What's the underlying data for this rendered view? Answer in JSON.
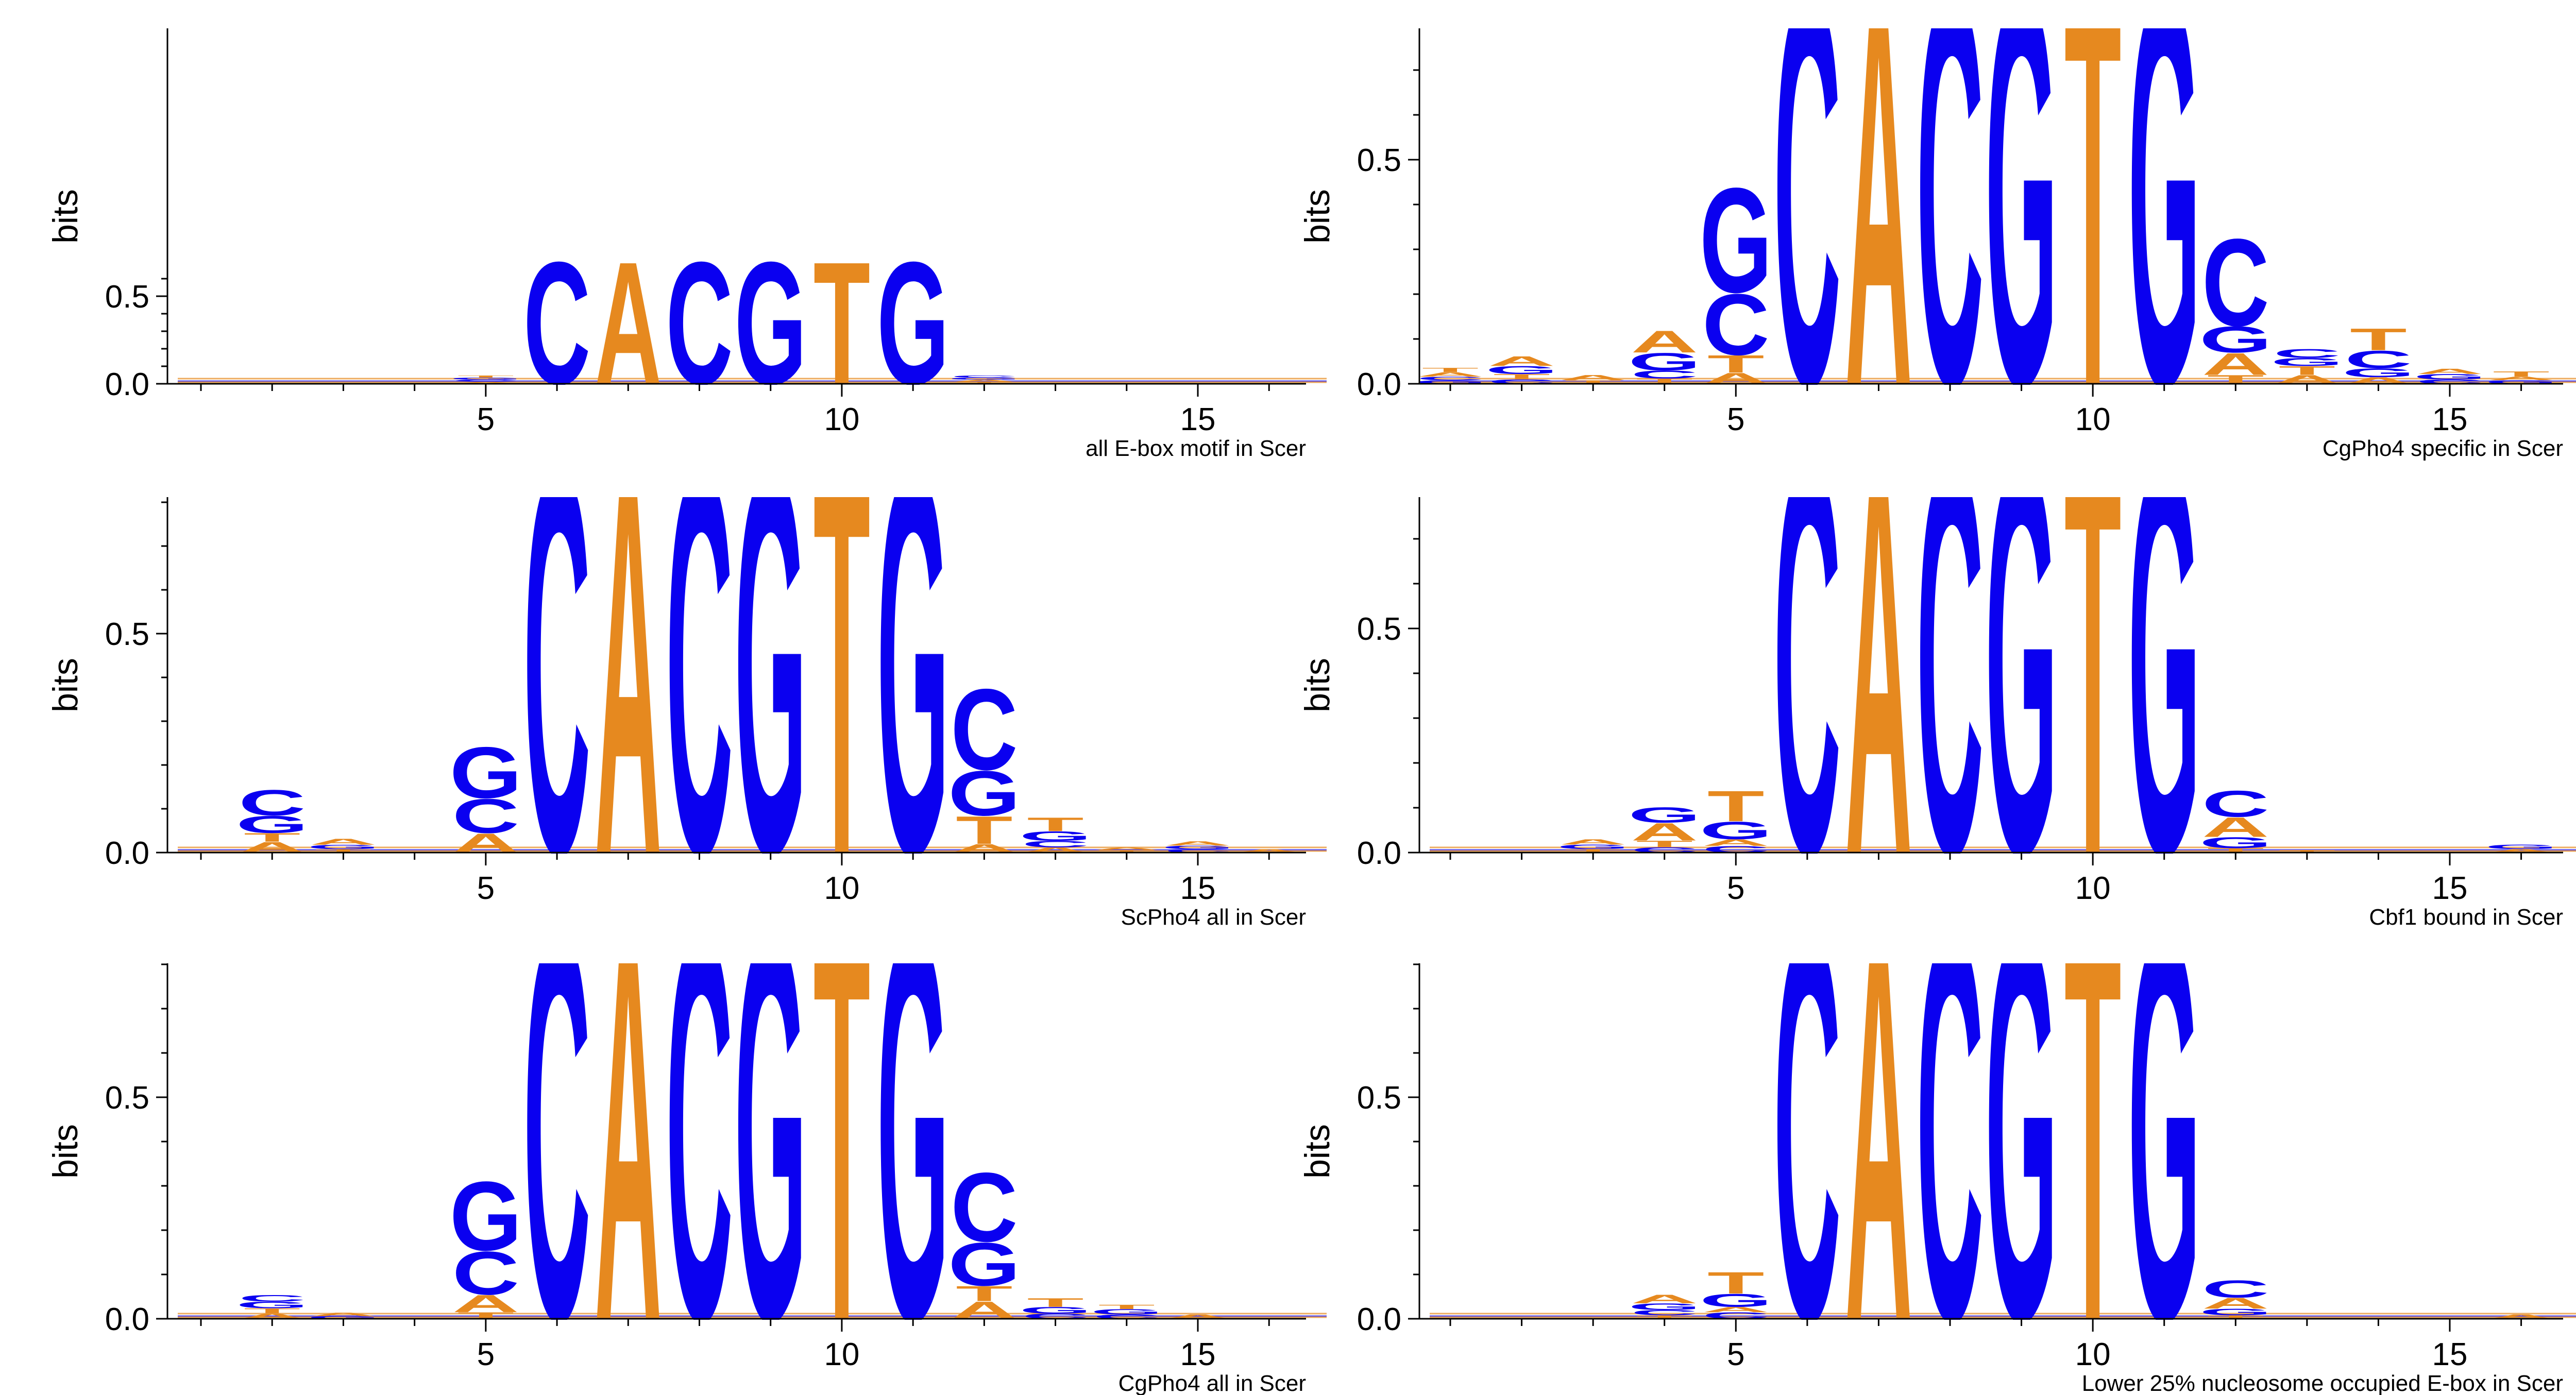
{
  "colors": {
    "blue": "#0a00f0",
    "orange": "#e6891f",
    "axis": "#000000"
  },
  "chart_data": [
    {
      "type": "sequence-logo",
      "caption": "all E-box motif in Scer",
      "ylabel": "bits",
      "ylim": [
        0,
        0.6
      ],
      "yticks": [
        "0.0",
        "0.5"
      ],
      "xticks": [
        "5",
        "10",
        "15"
      ],
      "xlim": [
        0.5,
        17
      ],
      "columns": [
        {
          "pos": 5,
          "letters": [
            {
              "c": "A",
              "h": 0.01
            },
            {
              "c": "C",
              "h": 0.012
            },
            {
              "c": "G",
              "h": 0.012
            },
            {
              "c": "T",
              "h": 0.012
            }
          ]
        },
        {
          "pos": 6,
          "letters": [
            {
              "c": "C",
              "h": 0.72
            }
          ]
        },
        {
          "pos": 7,
          "letters": [
            {
              "c": "A",
              "h": 0.72
            }
          ]
        },
        {
          "pos": 8,
          "letters": [
            {
              "c": "C",
              "h": 0.72
            }
          ]
        },
        {
          "pos": 9,
          "letters": [
            {
              "c": "G",
              "h": 0.72
            }
          ]
        },
        {
          "pos": 10,
          "letters": [
            {
              "c": "T",
              "h": 0.72
            }
          ]
        },
        {
          "pos": 11,
          "letters": [
            {
              "c": "G",
              "h": 0.72
            }
          ]
        },
        {
          "pos": 12,
          "letters": [
            {
              "c": "T",
              "h": 0.008
            },
            {
              "c": "A",
              "h": 0.01
            },
            {
              "c": "G",
              "h": 0.01
            },
            {
              "c": "C",
              "h": 0.012
            }
          ]
        }
      ]
    },
    {
      "type": "sequence-logo",
      "caption": "CgPho4 specific in Scer",
      "ylabel": "bits",
      "ylim": [
        0,
        0.8
      ],
      "yticks": [
        "0.0",
        "0.5"
      ],
      "xticks": [
        "5",
        "10",
        "15"
      ],
      "xlim": [
        0.5,
        17
      ],
      "columns": [
        {
          "pos": 1,
          "letters": [
            {
              "c": "G",
              "h": 0.008
            },
            {
              "c": "C",
              "h": 0.008
            },
            {
              "c": "A",
              "h": 0.01
            },
            {
              "c": "T",
              "h": 0.01
            }
          ]
        },
        {
          "pos": 2,
          "letters": [
            {
              "c": "C",
              "h": 0.01
            },
            {
              "c": "T",
              "h": 0.012
            },
            {
              "c": "G",
              "h": 0.018
            },
            {
              "c": "A",
              "h": 0.022
            }
          ]
        },
        {
          "pos": 3,
          "letters": [
            {
              "c": "T",
              "h": 0.008
            },
            {
              "c": "A",
              "h": 0.012
            }
          ]
        },
        {
          "pos": 4,
          "letters": [
            {
              "c": "T",
              "h": 0.012
            },
            {
              "c": "C",
              "h": 0.018
            },
            {
              "c": "G",
              "h": 0.04
            },
            {
              "c": "A",
              "h": 0.05
            }
          ]
        },
        {
          "pos": 5,
          "letters": [
            {
              "c": "A",
              "h": 0.025
            },
            {
              "c": "T",
              "h": 0.04
            },
            {
              "c": "C",
              "h": 0.14
            },
            {
              "c": "G",
              "h": 0.24
            }
          ]
        },
        {
          "pos": 6,
          "letters": [
            {
              "c": "C",
              "h": 0.9
            }
          ]
        },
        {
          "pos": 7,
          "letters": [
            {
              "c": "A",
              "h": 0.9
            }
          ]
        },
        {
          "pos": 8,
          "letters": [
            {
              "c": "C",
              "h": 0.9
            }
          ]
        },
        {
          "pos": 9,
          "letters": [
            {
              "c": "G",
              "h": 0.9
            }
          ]
        },
        {
          "pos": 10,
          "letters": [
            {
              "c": "T",
              "h": 0.9
            }
          ]
        },
        {
          "pos": 11,
          "letters": [
            {
              "c": "G",
              "h": 0.9
            }
          ]
        },
        {
          "pos": 12,
          "letters": [
            {
              "c": "T",
              "h": 0.02
            },
            {
              "c": "A",
              "h": 0.05
            },
            {
              "c": "G",
              "h": 0.06
            },
            {
              "c": "C",
              "h": 0.2
            }
          ]
        },
        {
          "pos": 13,
          "letters": [
            {
              "c": "A",
              "h": 0.02
            },
            {
              "c": "T",
              "h": 0.02
            },
            {
              "c": "G",
              "h": 0.018
            },
            {
              "c": "C",
              "h": 0.02
            }
          ]
        },
        {
          "pos": 14,
          "letters": [
            {
              "c": "A",
              "h": 0.015
            },
            {
              "c": "G",
              "h": 0.02
            },
            {
              "c": "C",
              "h": 0.04
            },
            {
              "c": "T",
              "h": 0.05
            }
          ]
        },
        {
          "pos": 15,
          "letters": [
            {
              "c": "C",
              "h": 0.01
            },
            {
              "c": "G",
              "h": 0.012
            },
            {
              "c": "A",
              "h": 0.012
            }
          ]
        },
        {
          "pos": 16,
          "letters": [
            {
              "c": "G",
              "h": 0.008
            },
            {
              "c": "A",
              "h": 0.008
            },
            {
              "c": "T",
              "h": 0.012
            }
          ]
        }
      ]
    },
    {
      "type": "sequence-logo",
      "caption": "ScPho4 all in Scer",
      "ylabel": "bits",
      "ylim": [
        0,
        0.8
      ],
      "yticks": [
        "0.0",
        "0.5"
      ],
      "xticks": [
        "5",
        "10",
        "15"
      ],
      "xlim": [
        0.5,
        17
      ],
      "columns": [
        {
          "pos": 2,
          "letters": [
            {
              "c": "A",
              "h": 0.025
            },
            {
              "c": "T",
              "h": 0.02
            },
            {
              "c": "G",
              "h": 0.04
            },
            {
              "c": "C",
              "h": 0.06
            }
          ]
        },
        {
          "pos": 3,
          "letters": [
            {
              "c": "T",
              "h": 0.008
            },
            {
              "c": "G",
              "h": 0.01
            },
            {
              "c": "A",
              "h": 0.014
            }
          ]
        },
        {
          "pos": 5,
          "letters": [
            {
              "c": "A",
              "h": 0.045
            },
            {
              "c": "C",
              "h": 0.08
            },
            {
              "c": "G",
              "h": 0.12
            }
          ]
        },
        {
          "pos": 6,
          "letters": [
            {
              "c": "C",
              "h": 0.9
            }
          ]
        },
        {
          "pos": 7,
          "letters": [
            {
              "c": "A",
              "h": 0.9
            }
          ]
        },
        {
          "pos": 8,
          "letters": [
            {
              "c": "C",
              "h": 0.9
            }
          ]
        },
        {
          "pos": 9,
          "letters": [
            {
              "c": "G",
              "h": 0.9
            }
          ]
        },
        {
          "pos": 10,
          "letters": [
            {
              "c": "T",
              "h": 0.9
            }
          ]
        },
        {
          "pos": 11,
          "letters": [
            {
              "c": "G",
              "h": 0.9
            }
          ]
        },
        {
          "pos": 12,
          "letters": [
            {
              "c": "A",
              "h": 0.02
            },
            {
              "c": "T",
              "h": 0.065
            },
            {
              "c": "G",
              "h": 0.105
            },
            {
              "c": "C",
              "h": 0.19
            }
          ]
        },
        {
          "pos": 13,
          "letters": [
            {
              "c": "A",
              "h": 0.012
            },
            {
              "c": "C",
              "h": 0.015
            },
            {
              "c": "G",
              "h": 0.022
            },
            {
              "c": "T",
              "h": 0.032
            }
          ]
        },
        {
          "pos": 14,
          "letters": [
            {
              "c": "T",
              "h": 0.006
            },
            {
              "c": "A",
              "h": 0.006
            }
          ]
        },
        {
          "pos": 15,
          "letters": [
            {
              "c": "C",
              "h": 0.008
            },
            {
              "c": "G",
              "h": 0.008
            },
            {
              "c": "A",
              "h": 0.01
            }
          ]
        },
        {
          "pos": 16,
          "letters": [
            {
              "c": "A",
              "h": 0.008
            }
          ]
        }
      ]
    },
    {
      "type": "sequence-logo",
      "caption": "Cbf1 bound in Scer",
      "ylabel": "bits",
      "ylim": [
        0,
        0.8
      ],
      "yticks": [
        "0.0",
        "0.5"
      ],
      "xticks": [
        "5",
        "10",
        "15"
      ],
      "xlim": [
        0.5,
        17
      ],
      "columns": [
        {
          "pos": 3,
          "letters": [
            {
              "c": "T",
              "h": 0.008
            },
            {
              "c": "G",
              "h": 0.01
            },
            {
              "c": "A",
              "h": 0.012
            }
          ]
        },
        {
          "pos": 4,
          "letters": [
            {
              "c": "C",
              "h": 0.012
            },
            {
              "c": "T",
              "h": 0.015
            },
            {
              "c": "A",
              "h": 0.04
            },
            {
              "c": "G",
              "h": 0.035
            }
          ]
        },
        {
          "pos": 5,
          "letters": [
            {
              "c": "C",
              "h": 0.015
            },
            {
              "c": "A",
              "h": 0.015
            },
            {
              "c": "G",
              "h": 0.04
            },
            {
              "c": "T",
              "h": 0.07
            }
          ]
        },
        {
          "pos": 6,
          "letters": [
            {
              "c": "C",
              "h": 0.9
            }
          ]
        },
        {
          "pos": 7,
          "letters": [
            {
              "c": "A",
              "h": 0.9
            }
          ]
        },
        {
          "pos": 8,
          "letters": [
            {
              "c": "C",
              "h": 0.9
            }
          ]
        },
        {
          "pos": 9,
          "letters": [
            {
              "c": "G",
              "h": 0.9
            }
          ]
        },
        {
          "pos": 10,
          "letters": [
            {
              "c": "T",
              "h": 0.9
            }
          ]
        },
        {
          "pos": 11,
          "letters": [
            {
              "c": "G",
              "h": 0.9
            }
          ]
        },
        {
          "pos": 12,
          "letters": [
            {
              "c": "T",
              "h": 0.01
            },
            {
              "c": "G",
              "h": 0.025
            },
            {
              "c": "A",
              "h": 0.045
            },
            {
              "c": "C",
              "h": 0.06
            }
          ]
        },
        {
          "pos": 13,
          "letters": [
            {
              "c": "T",
              "h": 0.006
            }
          ]
        },
        {
          "pos": 16,
          "letters": [
            {
              "c": "A",
              "h": 0.008
            },
            {
              "c": "G",
              "h": 0.01
            }
          ]
        }
      ]
    },
    {
      "type": "sequence-logo",
      "caption": "CgPho4 all in Scer",
      "ylabel": "bits",
      "ylim": [
        0,
        0.8
      ],
      "yticks": [
        "0.0",
        "0.5"
      ],
      "xticks": [
        "5",
        "10",
        "15"
      ],
      "xlim": [
        0.5,
        17
      ],
      "columns": [
        {
          "pos": 2,
          "letters": [
            {
              "c": "A",
              "h": 0.012
            },
            {
              "c": "T",
              "h": 0.012
            },
            {
              "c": "G",
              "h": 0.015
            },
            {
              "c": "C",
              "h": 0.015
            }
          ]
        },
        {
          "pos": 3,
          "letters": [
            {
              "c": "G",
              "h": 0.006
            },
            {
              "c": "A",
              "h": 0.008
            }
          ]
        },
        {
          "pos": 5,
          "letters": [
            {
              "c": "T",
              "h": 0.015
            },
            {
              "c": "A",
              "h": 0.04
            },
            {
              "c": "C",
              "h": 0.1
            },
            {
              "c": "G",
              "h": 0.16
            }
          ]
        },
        {
          "pos": 6,
          "letters": [
            {
              "c": "C",
              "h": 0.9
            }
          ]
        },
        {
          "pos": 7,
          "letters": [
            {
              "c": "A",
              "h": 0.9
            }
          ]
        },
        {
          "pos": 8,
          "letters": [
            {
              "c": "C",
              "h": 0.9
            }
          ]
        },
        {
          "pos": 9,
          "letters": [
            {
              "c": "G",
              "h": 0.9
            }
          ]
        },
        {
          "pos": 10,
          "letters": [
            {
              "c": "T",
              "h": 0.9
            }
          ]
        },
        {
          "pos": 11,
          "letters": [
            {
              "c": "G",
              "h": 0.9
            }
          ]
        },
        {
          "pos": 12,
          "letters": [
            {
              "c": "A",
              "h": 0.04
            },
            {
              "c": "T",
              "h": 0.035
            },
            {
              "c": "G",
              "h": 0.1
            },
            {
              "c": "C",
              "h": 0.16
            }
          ]
        },
        {
          "pos": 13,
          "letters": [
            {
              "c": "C",
              "h": 0.012
            },
            {
              "c": "G",
              "h": 0.015
            },
            {
              "c": "T",
              "h": 0.02
            }
          ]
        },
        {
          "pos": 14,
          "letters": [
            {
              "c": "C",
              "h": 0.01
            },
            {
              "c": "G",
              "h": 0.012
            },
            {
              "c": "T",
              "h": 0.01
            }
          ]
        },
        {
          "pos": 15,
          "letters": [
            {
              "c": "A",
              "h": 0.01
            }
          ]
        }
      ]
    },
    {
      "type": "sequence-logo",
      "caption": "Lower 25% nucleosome occupied E-box in Scer",
      "ylabel": "bits",
      "ylim": [
        0,
        0.8
      ],
      "yticks": [
        "0.0",
        "0.5"
      ],
      "xticks": [
        "5",
        "10",
        "15"
      ],
      "xlim": [
        0.5,
        17
      ],
      "columns": [
        {
          "pos": 4,
          "letters": [
            {
              "c": "T",
              "h": 0.008
            },
            {
              "c": "C",
              "h": 0.012
            },
            {
              "c": "G",
              "h": 0.015
            },
            {
              "c": "A",
              "h": 0.02
            }
          ]
        },
        {
          "pos": 5,
          "letters": [
            {
              "c": "C",
              "h": 0.015
            },
            {
              "c": "A",
              "h": 0.012
            },
            {
              "c": "G",
              "h": 0.03
            },
            {
              "c": "T",
              "h": 0.05
            }
          ]
        },
        {
          "pos": 6,
          "letters": [
            {
              "c": "C",
              "h": 0.9
            }
          ]
        },
        {
          "pos": 7,
          "letters": [
            {
              "c": "A",
              "h": 0.9
            }
          ]
        },
        {
          "pos": 8,
          "letters": [
            {
              "c": "C",
              "h": 0.9
            }
          ]
        },
        {
          "pos": 9,
          "letters": [
            {
              "c": "G",
              "h": 0.9
            }
          ]
        },
        {
          "pos": 10,
          "letters": [
            {
              "c": "T",
              "h": 0.9
            }
          ]
        },
        {
          "pos": 11,
          "letters": [
            {
              "c": "G",
              "h": 0.9
            }
          ]
        },
        {
          "pos": 12,
          "letters": [
            {
              "c": "T",
              "h": 0.008
            },
            {
              "c": "G",
              "h": 0.015
            },
            {
              "c": "A",
              "h": 0.025
            },
            {
              "c": "C",
              "h": 0.04
            }
          ]
        },
        {
          "pos": 16,
          "letters": [
            {
              "c": "A",
              "h": 0.01
            }
          ]
        }
      ]
    }
  ]
}
